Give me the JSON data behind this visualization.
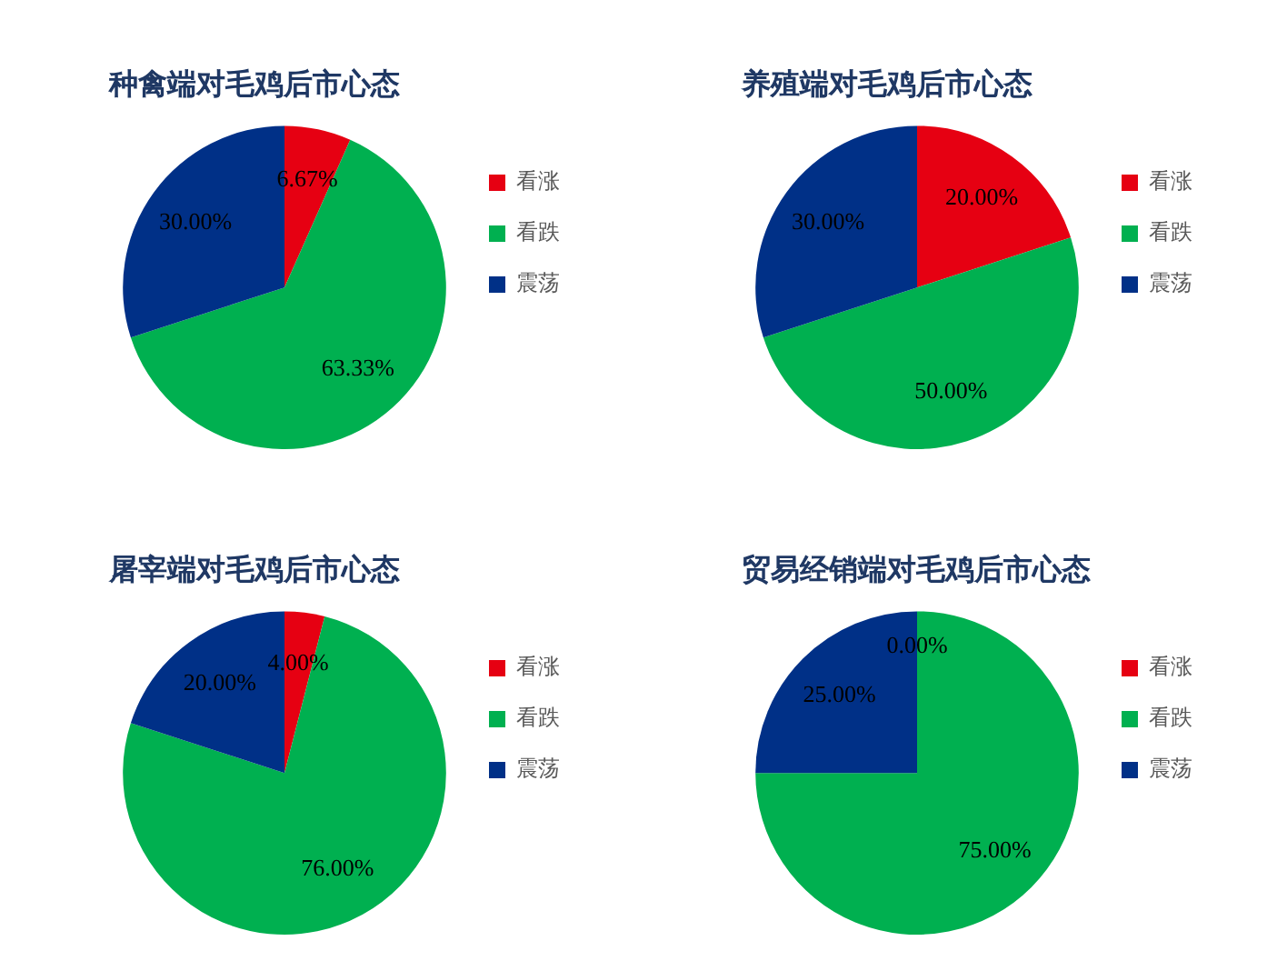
{
  "chart_data": [
    {
      "type": "pie",
      "title": "种禽端对毛鸡后市心态",
      "categories": [
        "看涨",
        "看跌",
        "震荡"
      ],
      "values": [
        6.67,
        63.33,
        30
      ],
      "value_labels": [
        "6.67%",
        "63.33%",
        "30.00%"
      ],
      "colors": [
        "#e60012",
        "#00b050",
        "#003087"
      ],
      "legend": "right"
    },
    {
      "type": "pie",
      "title": "养殖端对毛鸡后市心态",
      "categories": [
        "看涨",
        "看跌",
        "震荡"
      ],
      "values": [
        20,
        50,
        30
      ],
      "value_labels": [
        "20.00%",
        "50.00%",
        "30.00%"
      ],
      "colors": [
        "#e60012",
        "#00b050",
        "#003087"
      ],
      "legend": "right"
    },
    {
      "type": "pie",
      "title": "屠宰端对毛鸡后市心态",
      "categories": [
        "看涨",
        "看跌",
        "震荡"
      ],
      "values": [
        4,
        76,
        20
      ],
      "value_labels": [
        "4.00%",
        "76.00%",
        "20.00%"
      ],
      "colors": [
        "#e60012",
        "#00b050",
        "#003087"
      ],
      "legend": "right"
    },
    {
      "type": "pie",
      "title": "贸易经销端对毛鸡后市心态",
      "categories": [
        "看涨",
        "看跌",
        "震荡"
      ],
      "values": [
        0,
        75,
        25
      ],
      "value_labels": [
        "0.00%",
        "75.00%",
        "25.00%"
      ],
      "colors": [
        "#e60012",
        "#00b050",
        "#003087"
      ],
      "legend": "right"
    }
  ]
}
